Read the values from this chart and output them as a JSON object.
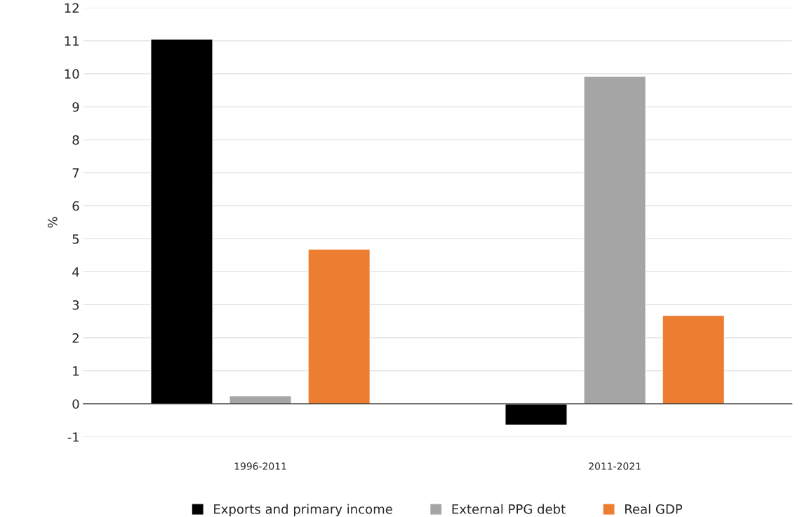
{
  "chart_data": {
    "type": "bar",
    "ylabel": "%",
    "categories": [
      "1996-2011",
      "2011-2021"
    ],
    "series": [
      {
        "name": "Exports and primary income",
        "color": "#000000",
        "values": [
          11.05,
          -0.65
        ]
      },
      {
        "name": "External PPG debt",
        "color": "#a5a5a5",
        "values": [
          0.24,
          9.92
        ]
      },
      {
        "name": "Real GDP",
        "color": "#ed7d31",
        "values": [
          4.69,
          2.68
        ]
      }
    ],
    "ylim": [
      -1,
      12
    ],
    "yticks": [
      {
        "value": -1,
        "label": "-1"
      },
      0,
      1,
      2,
      3,
      4,
      5,
      6,
      7,
      8,
      9,
      10,
      11,
      12
    ],
    "grid": "y",
    "legend": "bottom"
  }
}
